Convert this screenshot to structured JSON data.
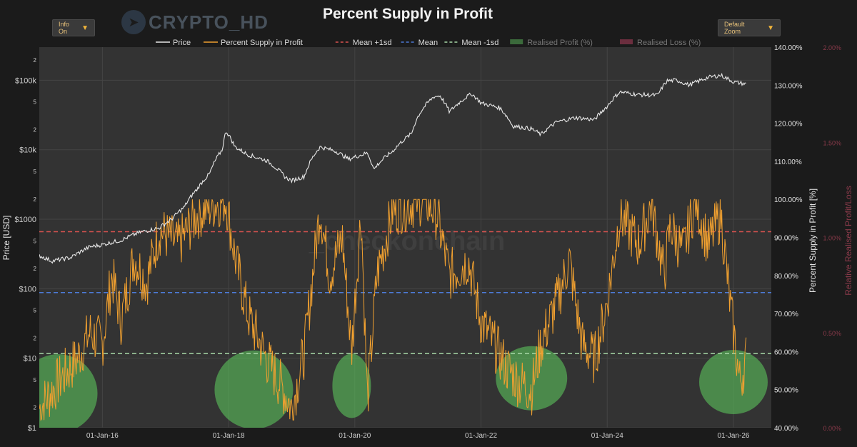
{
  "header": {
    "title": "Percent Supply in Profit",
    "info_button": "Info On",
    "zoom_button": "Default Zoom",
    "watermark": "CRYPTO_HD",
    "watermark_center": "_checkonchain"
  },
  "colors": {
    "price": "#e8e8e8",
    "supply": "#f0a030",
    "mean_plus": "#d9534f",
    "mean": "#4d7bd8",
    "mean_minus": "#a6d6a6",
    "profit": "#3b6a3b",
    "loss": "#6b2e3e",
    "highlight": "#5fcf5f"
  },
  "chart_data": {
    "type": "line",
    "title": "Percent Supply in Profit",
    "legend": [
      {
        "label": "Price",
        "style": "solid",
        "color": "#e8e8e8"
      },
      {
        "label": "Percent Supply in Profit",
        "style": "solid",
        "color": "#f0a030"
      },
      {
        "label": "Mean +1sd",
        "style": "dashed",
        "color": "#d9534f"
      },
      {
        "label": "Mean",
        "style": "dashed",
        "color": "#4d7bd8"
      },
      {
        "label": "Mean -1sd",
        "style": "dashed",
        "color": "#a6d6a6"
      },
      {
        "label": "Realised Profit (%)",
        "style": "box",
        "color": "#3b6a3b"
      },
      {
        "label": "Realised Loss (%)",
        "style": "box",
        "color": "#6b2e3e"
      }
    ],
    "x_ticks": [
      "01-Jan-16",
      "01-Jan-18",
      "01-Jan-20",
      "01-Jan-22",
      "01-Jan-24",
      "01-Jan-26"
    ],
    "x_range": [
      2015.0,
      2026.6
    ],
    "y_left": {
      "label": "Price [USD]",
      "scale": "log",
      "range": [
        1,
        300000
      ],
      "ticks": [
        "$1",
        "2",
        "5",
        "$10",
        "2",
        "5",
        "$100",
        "2",
        "5",
        "$1000",
        "2",
        "5",
        "$10k",
        "2",
        "5",
        "$100k",
        "2"
      ],
      "tick_values": [
        1,
        2,
        5,
        10,
        20,
        50,
        100,
        200,
        500,
        1000,
        2000,
        5000,
        10000,
        20000,
        50000,
        100000,
        200000
      ]
    },
    "y_right": {
      "label": "Percent Supply in Profit [%]",
      "range": [
        40,
        140
      ],
      "ticks": [
        "40.00%",
        "50.00%",
        "60.00%",
        "70.00%",
        "80.00%",
        "90.00%",
        "100.00%",
        "110.00%",
        "120.00%",
        "130.00%",
        "140.00%"
      ],
      "tick_values": [
        40,
        50,
        60,
        70,
        80,
        90,
        100,
        110,
        120,
        130,
        140
      ]
    },
    "y_right2": {
      "label": "Relative Realised Profit/Loss",
      "range": [
        0,
        2
      ],
      "ticks": [
        "0.00%",
        "0.50%",
        "1.00%",
        "1.50%",
        "2.00%"
      ],
      "tick_values": [
        0,
        0.5,
        1.0,
        1.5,
        2.0
      ]
    },
    "mean_lines": {
      "mean_plus_1sd": 91.5,
      "mean": 75.5,
      "mean_minus_1sd": 59.5
    },
    "price_series": {
      "x": [
        2015.0,
        2015.2,
        2015.5,
        2015.8,
        2016.0,
        2016.3,
        2016.6,
        2016.9,
        2017.1,
        2017.3,
        2017.5,
        2017.7,
        2017.9,
        2017.96,
        2018.1,
        2018.3,
        2018.6,
        2018.9,
        2019.0,
        2019.2,
        2019.45,
        2019.7,
        2019.9,
        2020.2,
        2020.3,
        2020.6,
        2020.9,
        2021.0,
        2021.25,
        2021.35,
        2021.5,
        2021.85,
        2022.0,
        2022.3,
        2022.5,
        2022.8,
        2022.95,
        2023.2,
        2023.5,
        2023.8,
        2024.0,
        2024.2,
        2024.5,
        2024.8,
        2024.95,
        2025.1,
        2025.3,
        2025.6,
        2025.8,
        2026.0,
        2026.2
      ],
      "y": [
        300,
        250,
        280,
        400,
        430,
        500,
        650,
        750,
        1000,
        1500,
        2700,
        4500,
        10000,
        18500,
        11000,
        8500,
        7000,
        4000,
        3600,
        4100,
        11000,
        9500,
        7300,
        9000,
        5200,
        9500,
        17000,
        30000,
        58000,
        60000,
        35000,
        64000,
        47000,
        40000,
        22000,
        20000,
        16500,
        25000,
        29000,
        27000,
        42000,
        68000,
        62000,
        61000,
        98000,
        100000,
        85000,
        110000,
        118000,
        95000,
        88000
      ]
    },
    "supply_series": {
      "x": [
        2015.0,
        2015.3,
        2015.6,
        2015.8,
        2016.0,
        2016.15,
        2016.3,
        2016.5,
        2016.7,
        2016.9,
        2017.2,
        2017.5,
        2017.8,
        2017.96,
        2018.1,
        2018.3,
        2018.6,
        2018.9,
        2019.0,
        2019.2,
        2019.45,
        2019.6,
        2019.8,
        2019.95,
        2020.1,
        2020.2,
        2020.35,
        2020.6,
        2020.9,
        2021.1,
        2021.3,
        2021.5,
        2021.8,
        2022.0,
        2022.2,
        2022.4,
        2022.6,
        2022.8,
        2022.95,
        2023.2,
        2023.4,
        2023.6,
        2023.8,
        2024.0,
        2024.2,
        2024.5,
        2024.7,
        2024.9,
        2025.0,
        2025.2,
        2025.4,
        2025.6,
        2025.8,
        2025.95,
        2026.1,
        2026.2
      ],
      "y": [
        45,
        52,
        58,
        65,
        62,
        80,
        68,
        85,
        78,
        92,
        88,
        96,
        99,
        100,
        85,
        70,
        58,
        49,
        45,
        60,
        98,
        80,
        90,
        60,
        97,
        47,
        80,
        97,
        99,
        100,
        96,
        80,
        84,
        68,
        62,
        56,
        52,
        50,
        62,
        73,
        84,
        62,
        58,
        73,
        96,
        88,
        99,
        80,
        93,
        86,
        100,
        88,
        96,
        72,
        52,
        58
      ]
    },
    "highlight_regions": [
      {
        "x_center": 2015.3,
        "y_center": 49
      },
      {
        "x_center": 2018.4,
        "y_center": 50
      },
      {
        "x_center": 2019.95,
        "y_center": 51
      },
      {
        "x_center": 2022.8,
        "y_center": 53
      },
      {
        "x_center": 2026.0,
        "y_center": 52
      }
    ]
  }
}
